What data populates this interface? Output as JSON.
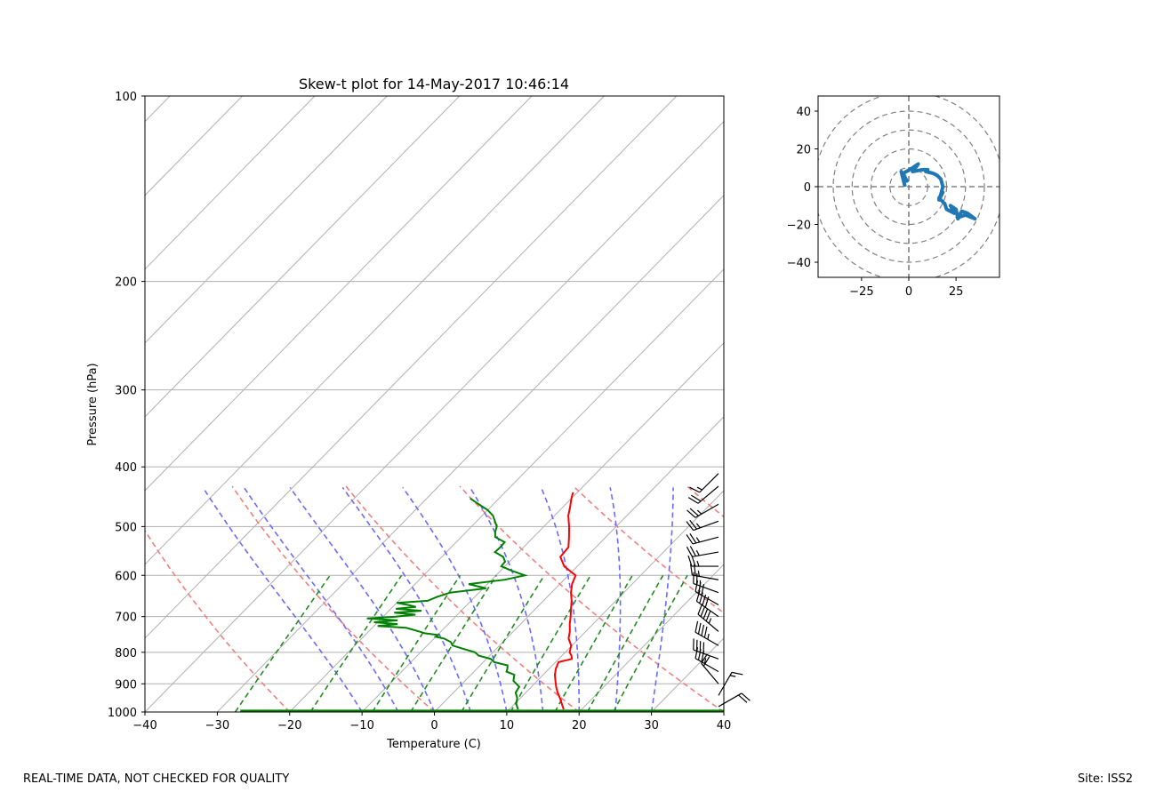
{
  "footer": {
    "disclaimer": "REAL-TIME DATA, NOT CHECKED FOR QUALITY",
    "site": "Site: ISS2"
  },
  "colors": {
    "temperature": "#ff0000",
    "dewpoint": "#008000",
    "dry_adiabat": "#f08080",
    "moist_adiabat": "#6a6aff",
    "mixing_ratio": "#228b22",
    "isotherm": "#b0b0b0",
    "hodograph": "#1f77b4",
    "barb": "#000000"
  },
  "chart_data": [
    {
      "type": "line",
      "name": "skewt",
      "title": "Skew-t plot for 14-May-2017 10:46:14",
      "xlabel": "Temperature (C)",
      "ylabel": "Pressure (hPa)",
      "xlim": [
        -40,
        40
      ],
      "ylim": [
        1000,
        100
      ],
      "yscale": "log",
      "xticks": [
        -40,
        -30,
        -20,
        -10,
        0,
        10,
        20,
        30,
        40
      ],
      "yticks": [
        100,
        200,
        300,
        400,
        500,
        600,
        700,
        800,
        900,
        1000
      ],
      "series": [
        {
          "name": "Temperature",
          "p": [
            990,
            970,
            950,
            930,
            910,
            890,
            870,
            850,
            830,
            820,
            810,
            800,
            780,
            760,
            740,
            720,
            700,
            680,
            660,
            640,
            620,
            600,
            580,
            560,
            540,
            520,
            500,
            480,
            465,
            450,
            440
          ],
          "t": [
            17.5,
            16.5,
            15.5,
            14.4,
            13.4,
            12.5,
            11.6,
            10.9,
            10.4,
            11.8,
            11.3,
            10.6,
            9.9,
            8.6,
            7.8,
            6.8,
            5.9,
            4.9,
            3.9,
            2.7,
            1.7,
            1.0,
            -1.8,
            -3.6,
            -3.8,
            -5.1,
            -6.5,
            -8.1,
            -9.0,
            -10.0,
            -10.6
          ]
        },
        {
          "name": "Dewpoint",
          "p": [
            990,
            970,
            950,
            930,
            910,
            890,
            870,
            860,
            850,
            840,
            830,
            820,
            810,
            800,
            790,
            780,
            770,
            760,
            755,
            750,
            745,
            740,
            730,
            725,
            720,
            715,
            710,
            705,
            700,
            695,
            690,
            685,
            680,
            675,
            670,
            665,
            660,
            650,
            640,
            630,
            620,
            610,
            600,
            590,
            580,
            570,
            560,
            550,
            540,
            530,
            520,
            510,
            500,
            490,
            480,
            470,
            460,
            450
          ],
          "t": [
            11.2,
            10.2,
            9.6,
            8.6,
            8.3,
            6.7,
            6.0,
            4.5,
            4.2,
            3.8,
            1.5,
            0.6,
            -1.5,
            -2.5,
            -4.5,
            -6.5,
            -7.2,
            -8.6,
            -10.0,
            -9.9,
            -12.0,
            -13.0,
            -15.3,
            -19.5,
            -17.0,
            -20.5,
            -17.5,
            -22.0,
            -18.3,
            -15.8,
            -19.0,
            -15.5,
            -19.3,
            -16.8,
            -18.2,
            -20.0,
            -16.0,
            -15.2,
            -14.0,
            -9.6,
            -12.6,
            -8.2,
            -6.0,
            -8.4,
            -10.5,
            -10.6,
            -11.5,
            -13.3,
            -13.2,
            -13.3,
            -15.3,
            -16.0,
            -16.5,
            -17.5,
            -18.5,
            -20.0,
            -22.0,
            -24.0
          ]
        }
      ],
      "wind_barbs": {
        "units": "kt",
        "p": [
          980,
          940,
          900,
          860,
          820,
          780,
          740,
          700,
          670,
          640,
          610,
          580,
          550,
          520,
          490,
          460,
          430,
          410
        ],
        "speed": [
          20,
          15,
          20,
          35,
          40,
          45,
          45,
          40,
          30,
          25,
          25,
          25,
          25,
          25,
          25,
          25,
          20,
          15
        ],
        "direction": [
          60,
          30,
          320,
          300,
          290,
          300,
          310,
          305,
          300,
          290,
          280,
          270,
          260,
          255,
          250,
          240,
          230,
          225
        ]
      }
    },
    {
      "type": "line",
      "name": "hodograph",
      "xlim": [
        -48,
        48
      ],
      "ylim": [
        -48,
        48
      ],
      "xticks": [
        -25,
        0,
        25
      ],
      "yticks": [
        -40,
        -20,
        0,
        20,
        40
      ],
      "rings": [
        10,
        20,
        30,
        40,
        50
      ],
      "series": [
        {
          "name": "wind",
          "u": [
            -2,
            -4,
            -1,
            -3,
            2,
            5,
            2,
            7,
            10,
            9,
            13,
            15,
            17,
            18,
            17,
            16,
            18,
            16,
            19,
            20,
            24,
            22,
            25,
            26,
            28,
            31,
            35,
            30,
            27,
            25
          ],
          "v": [
            0,
            8,
            3,
            7,
            10,
            12,
            8,
            9,
            9,
            8,
            7,
            6,
            4,
            0,
            -4,
            -7,
            -3,
            -6,
            -9,
            -12,
            -14,
            -10,
            -12,
            -17,
            -13,
            -14,
            -17,
            -15,
            -16,
            -17
          ]
        }
      ]
    }
  ]
}
